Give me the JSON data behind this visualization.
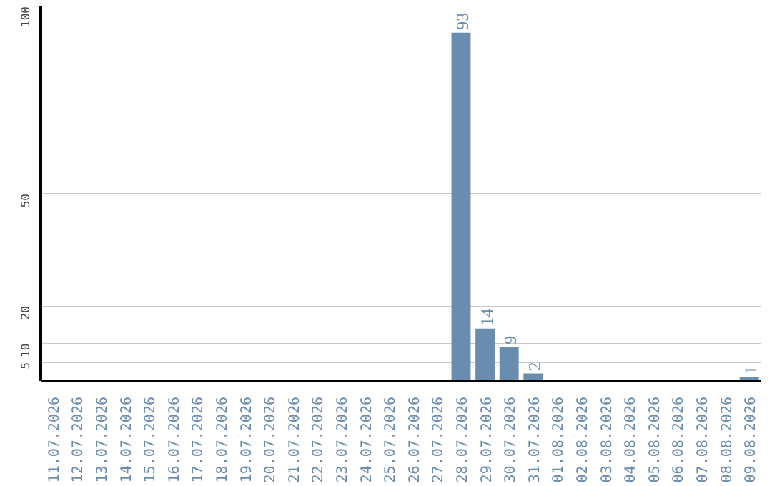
{
  "chart_data": {
    "type": "bar",
    "categories": [
      "11.07.2026",
      "12.07.2026",
      "13.07.2026",
      "14.07.2026",
      "15.07.2026",
      "16.07.2026",
      "17.07.2026",
      "18.07.2026",
      "19.07.2026",
      "20.07.2026",
      "21.07.2026",
      "22.07.2026",
      "23.07.2026",
      "24.07.2026",
      "25.07.2026",
      "26.07.2026",
      "27.07.2026",
      "28.07.2026",
      "29.07.2026",
      "30.07.2026",
      "31.07.2026",
      "01.08.2026",
      "02.08.2026",
      "03.08.2026",
      "04.08.2026",
      "05.08.2026",
      "06.08.2026",
      "07.08.2026",
      "08.08.2026",
      "09.08.2026"
    ],
    "values": [
      0,
      0,
      0,
      0,
      0,
      0,
      0,
      0,
      0,
      0,
      0,
      0,
      0,
      0,
      0,
      0,
      0,
      93,
      14,
      9,
      2,
      0,
      0,
      0,
      0,
      0,
      0,
      0,
      0,
      1
    ],
    "value_labels": [
      null,
      null,
      null,
      null,
      null,
      null,
      null,
      null,
      null,
      null,
      null,
      null,
      null,
      null,
      null,
      null,
      null,
      "93",
      "14",
      "9",
      "2",
      null,
      null,
      null,
      null,
      null,
      null,
      null,
      null,
      "1"
    ],
    "color": "#6a8caf",
    "ylim": [
      0,
      100
    ],
    "yticks": [
      5,
      10,
      20,
      50,
      100
    ],
    "grid": "y"
  }
}
